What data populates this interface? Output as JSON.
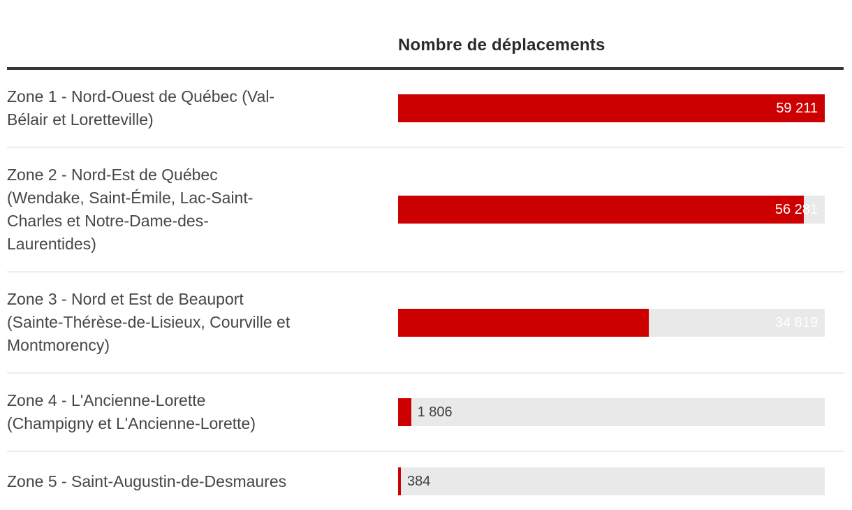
{
  "header": {
    "title": "Nombre de déplacements"
  },
  "chart_data": {
    "type": "bar",
    "orientation": "horizontal",
    "title": "Nombre de déplacements",
    "categories": [
      "Zone 1 - Nord-Ouest de Québec (Val-Bélair et Loretteville)",
      "Zone 2 - Nord-Est de Québec (Wendake, Saint-Émile, Lac-Saint-Charles et Notre-Dame-des-Laurentides)",
      "Zone 3 - Nord et Est de Beauport (Sainte-Thérèse-de-Lisieux, Courville et Montmorency)",
      "Zone 4 - L'Ancienne-Lorette (Champigny et L'Ancienne-Lorette)",
      "Zone 5 - Saint-Augustin-de-Desmaures"
    ],
    "values": [
      59211,
      56281,
      34819,
      1806,
      384
    ],
    "value_labels": [
      "59 211",
      "56 281",
      "34 819",
      "1 806",
      "384"
    ],
    "xlabel": "",
    "ylabel": "",
    "xlim": [
      0,
      59211
    ],
    "grid": false,
    "legend": false,
    "colors": {
      "bar": "#cc0000",
      "track": "#e9e9e9",
      "value_inside": "#ffffff",
      "value_outside": "#3f3f3f",
      "divider": "#ececec",
      "header_rule": "#363636",
      "label_text": "#464646",
      "title_text": "#2b2b2b"
    }
  },
  "rows": [
    {
      "label": "Zone 1 - Nord-Ouest de Québec (Val-\nBélair et Loretteville)",
      "value": 59211,
      "value_label": "59 211",
      "label_position": "inside"
    },
    {
      "label": "Zone 2 - Nord-Est de Québec\n(Wendake, Saint-Émile, Lac-Saint-\nCharles et Notre-Dame-des-\nLaurentides)",
      "value": 56281,
      "value_label": "56 281",
      "label_position": "inside"
    },
    {
      "label": "Zone 3 - Nord et Est de Beauport\n(Sainte-Thérèse-de-Lisieux, Courville et\nMontmorency)",
      "value": 34819,
      "value_label": "34 819",
      "label_position": "inside"
    },
    {
      "label": "Zone 4 - L'Ancienne-Lorette\n(Champigny et L'Ancienne-Lorette)",
      "value": 1806,
      "value_label": "1 806",
      "label_position": "outside"
    },
    {
      "label": "Zone 5 - Saint-Augustin-de-Desmaures",
      "value": 384,
      "value_label": "384",
      "label_position": "outside"
    }
  ]
}
